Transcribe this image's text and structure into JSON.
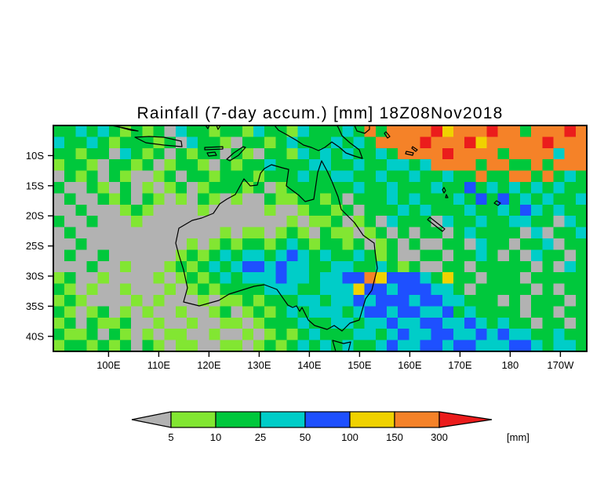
{
  "title": "Rainfall (7-day accum.) [mm] 18Z08Nov2018",
  "x_axis": {
    "labels": [
      "100E",
      "110E",
      "120E",
      "130E",
      "140E",
      "150E",
      "160E",
      "170E",
      "180",
      "170W"
    ],
    "values": [
      100,
      110,
      120,
      130,
      140,
      150,
      160,
      170,
      180,
      190
    ]
  },
  "y_axis": {
    "labels": [
      "10S",
      "15S",
      "20S",
      "25S",
      "30S",
      "35S",
      "40S"
    ],
    "values": [
      10,
      15,
      20,
      25,
      30,
      35,
      40
    ]
  },
  "colorbar": {
    "ticks": [
      "5",
      "10",
      "25",
      "50",
      "100",
      "150",
      "300"
    ],
    "unit_label": "[mm]"
  },
  "chart_data": {
    "type": "heatmap",
    "title": "Rainfall (7-day accum.) [mm] 18Z08Nov2018",
    "time": "18Z08Nov2018",
    "variable": "7-day accumulated rainfall",
    "units": "mm",
    "lon_range": [
      89,
      195.25
    ],
    "lat_range": [
      5,
      42.5
    ],
    "lon_ticks": [
      100,
      110,
      120,
      130,
      140,
      150,
      160,
      170,
      180,
      190
    ],
    "lat_ticks": [
      10,
      15,
      20,
      25,
      30,
      35,
      40
    ],
    "levels_mm": [
      5,
      10,
      25,
      50,
      100,
      150,
      300
    ],
    "bin_labels": [
      "<5",
      "5-10",
      "10-25",
      "25-50",
      "50-100",
      "100-150",
      "150-300",
      ">300"
    ],
    "palette": [
      "#b2b2b2",
      "#82e632",
      "#00c83c",
      "#00cdc8",
      "#1e50ff",
      "#f0d200",
      "#f58228",
      "#eb1c1c"
    ],
    "grid_note": "coarse 48x20 categorical grid (codes 0-7 index bin_labels); row 0 = 5S (north edge), col 0 = 89E (west edge)",
    "grid": [
      "223232121203221221322132223262666675666766266676",
      "322321222120322102212322232326666766675666667666",
      "221220321202122021022132323223266667666626666366",
      "122102212012210212232223322322332366662662262666",
      "021202100120221222122232233223223223226226626232",
      "200210201012012221201222222322322232242323232322",
      "020021202101021010021122120222323222324242323223",
      "002000121000010000010012212022232322232232432322",
      "200200010000000000000101120120322203223223322032",
      "020000000000000101101210211012020220232222030223",
      "002000000000101212212321221201202002203220223022",
      "020020000001212323323432322321200220223202032202",
      "000200100012123234434332233223212002202222202032",
      "120010000101212323334332334465444325220222022222",
      "210100100010121222233322333544344433202222202022",
      "121000010100010112122233233434443443322202022202",
      "210120101001001201212323332344344334232222022022",
      "120211200100100110122232233233433443343232202202",
      "211202101011001001012123222332343344334343322322",
      "122121202101100110121232323223433443443334432332"
    ]
  }
}
